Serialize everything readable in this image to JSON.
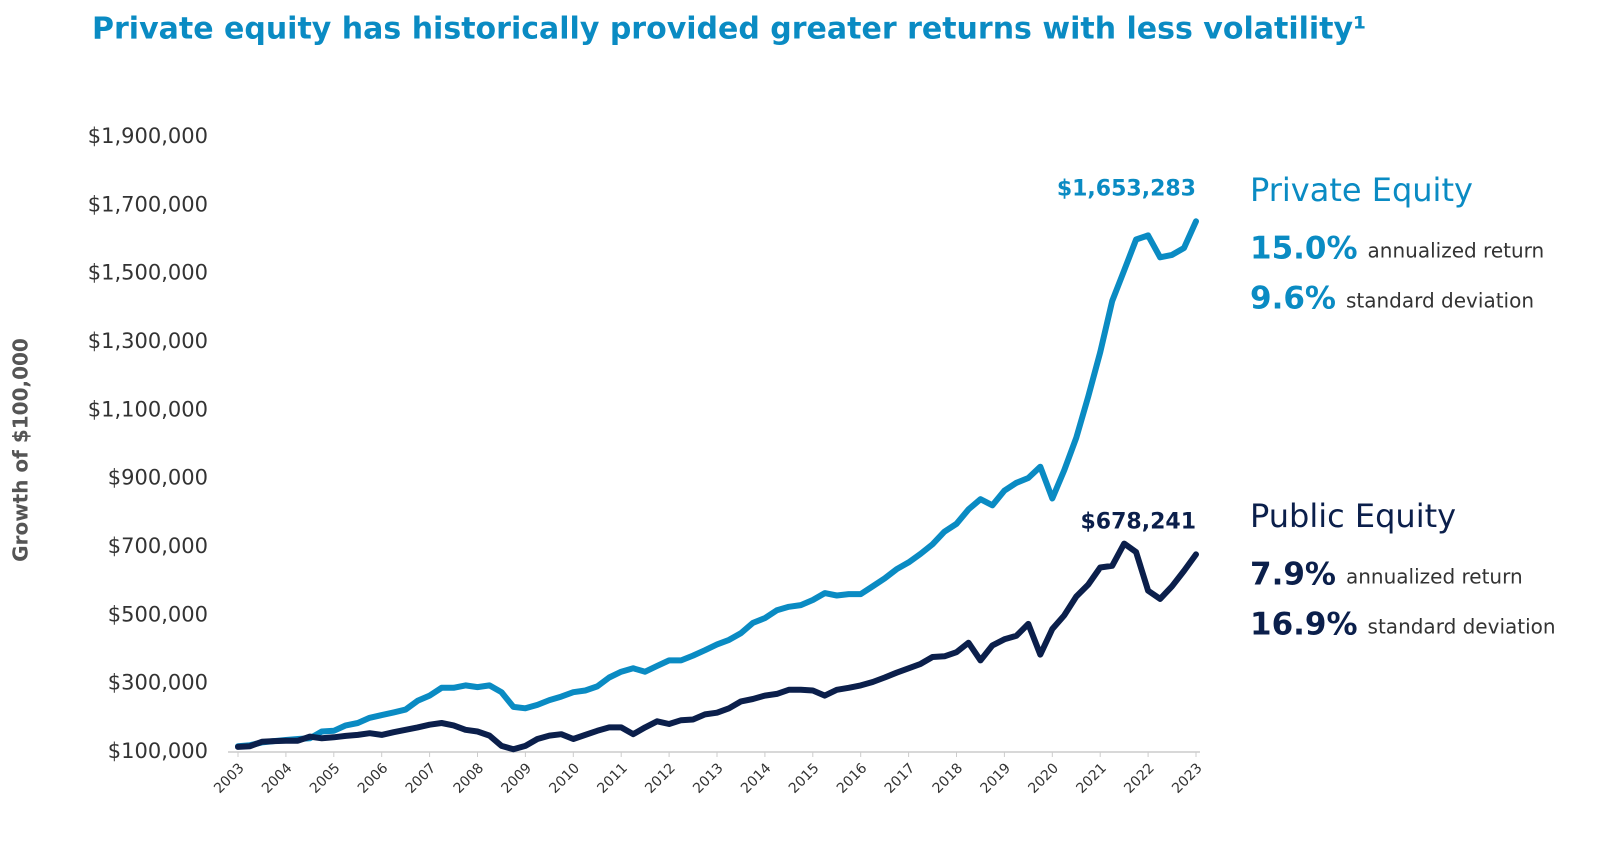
{
  "chart_data": {
    "type": "line",
    "title": "Private equity has historically provided greater returns with less volatility¹",
    "y_label": "Growth of $100,000",
    "x": [
      2003,
      2003.25,
      2003.5,
      2003.75,
      2004,
      2004.25,
      2004.5,
      2004.75,
      2005,
      2005.25,
      2005.5,
      2005.75,
      2006,
      2006.25,
      2006.5,
      2006.75,
      2007,
      2007.25,
      2007.5,
      2007.75,
      2008,
      2008.25,
      2008.5,
      2008.75,
      2009,
      2009.25,
      2009.5,
      2009.75,
      2010,
      2010.25,
      2010.5,
      2010.75,
      2011,
      2011.25,
      2011.5,
      2011.75,
      2012,
      2012.25,
      2012.5,
      2012.75,
      2013,
      2013.25,
      2013.5,
      2013.75,
      2014,
      2014.25,
      2014.5,
      2014.75,
      2015,
      2015.25,
      2015.5,
      2015.75,
      2016,
      2016.25,
      2016.5,
      2016.75,
      2017,
      2017.25,
      2017.5,
      2017.75,
      2018,
      2018.25,
      2018.5,
      2018.75,
      2019,
      2019.25,
      2019.5,
      2019.75,
      2020,
      2020.25,
      2020.5,
      2020.75,
      2021,
      2021.25,
      2021.5,
      2021.75,
      2022,
      2022.25,
      2022.5,
      2022.75,
      2023
    ],
    "series": [
      {
        "name": "Private Equity",
        "color": "#0a8bc3",
        "values": [
          117000,
          120000,
          128000,
          132000,
          135000,
          138000,
          140000,
          160000,
          162000,
          178000,
          185000,
          200000,
          208000,
          216000,
          224000,
          250000,
          265000,
          288000,
          288000,
          295000,
          290000,
          295000,
          275000,
          232000,
          228000,
          238000,
          252000,
          262000,
          275000,
          280000,
          292000,
          318000,
          335000,
          345000,
          335000,
          352000,
          368000,
          368000,
          382000,
          398000,
          415000,
          428000,
          448000,
          478000,
          492000,
          515000,
          525000,
          530000,
          545000,
          565000,
          558000,
          562000,
          562000,
          585000,
          608000,
          635000,
          655000,
          680000,
          708000,
          745000,
          768000,
          810000,
          840000,
          822000,
          865000,
          888000,
          902000,
          935000,
          842000,
          925000,
          1020000,
          1140000,
          1270000,
          1420000,
          1510000,
          1600000,
          1612000,
          1548000,
          1555000,
          1575000,
          1653283
        ],
        "stats": [
          {
            "value": "15.0%",
            "label": "annualized return"
          },
          {
            "value": "9.6%",
            "label": "standard deviation"
          }
        ]
      },
      {
        "name": "Public Equity",
        "color": "#0b1f4b",
        "values": [
          115000,
          117000,
          130000,
          132000,
          133000,
          133000,
          145000,
          140000,
          143000,
          147000,
          150000,
          155000,
          150000,
          158000,
          165000,
          172000,
          180000,
          185000,
          178000,
          165000,
          160000,
          148000,
          118000,
          108000,
          118000,
          138000,
          148000,
          152000,
          138000,
          150000,
          162000,
          172000,
          172000,
          152000,
          172000,
          190000,
          182000,
          193000,
          195000,
          210000,
          215000,
          228000,
          248000,
          255000,
          265000,
          270000,
          282000,
          282000,
          280000,
          265000,
          282000,
          288000,
          295000,
          305000,
          318000,
          332000,
          345000,
          358000,
          378000,
          380000,
          392000,
          420000,
          368000,
          412000,
          430000,
          440000,
          475000,
          385000,
          460000,
          500000,
          555000,
          590000,
          640000,
          645000,
          710000,
          685000,
          572000,
          548000,
          585000,
          630000,
          678241
        ],
        "stats": [
          {
            "value": "7.9%",
            "label": "annualized return"
          },
          {
            "value": "16.9%",
            "label": "standard deviation"
          }
        ]
      }
    ],
    "annotations": [
      {
        "x": 2023,
        "y": 1653283,
        "text": "$1,653,283",
        "color": "#0a8bc3"
      },
      {
        "x": 2023,
        "y": 678241,
        "text": "$678,241",
        "color": "#0b1f4b"
      }
    ],
    "xlim": [
      2003,
      2023
    ],
    "xticks": [
      2003,
      2004,
      2005,
      2006,
      2007,
      2008,
      2009,
      2010,
      2011,
      2012,
      2013,
      2014,
      2015,
      2016,
      2017,
      2018,
      2019,
      2020,
      2021,
      2022,
      2023
    ],
    "ylim": [
      100000,
      1900000
    ],
    "yticks": [
      {
        "value": 100000,
        "label": "$100,000"
      },
      {
        "value": 300000,
        "label": "$300,000"
      },
      {
        "value": 500000,
        "label": "$500,000"
      },
      {
        "value": 700000,
        "label": "$700,000"
      },
      {
        "value": 900000,
        "label": "$900,000"
      },
      {
        "value": 1100000,
        "label": "$1,100,000"
      },
      {
        "value": 1300000,
        "label": "$1,300,000"
      },
      {
        "value": 1500000,
        "label": "$1,500,000"
      },
      {
        "value": 1700000,
        "label": "$1,700,000"
      },
      {
        "value": 1900000,
        "label": "$1,900,000"
      }
    ],
    "grid": false
  }
}
